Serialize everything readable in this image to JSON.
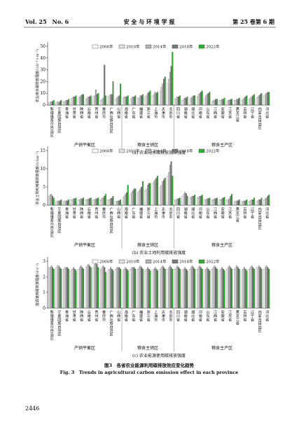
{
  "header": {
    "left": "Vol. 25　No. 6",
    "center": "安 全 与 环 境 学 报",
    "right": "第 25 卷第 6 期"
  },
  "figure": {
    "caption_cn": "图3　各省农业能源利用碳排放效应变化趋势",
    "caption_en": "Fig. 3　Trends in agricultural carbon emission effect in each province"
  },
  "page_number": "2446",
  "chart_data": [
    {
      "type": "bar",
      "title": "(a) 农业用水碳排放效应强度",
      "y_label": "农业用水碳排放强度/(10⁻⁴ t·m⁻³)",
      "categories": [
        "新疆维吾尔自治区",
        "宁夏回族自治区",
        "青海省",
        "甘肃省",
        "陕西省",
        "云南省",
        "贵州省",
        "重庆市",
        "广西壮族自治区",
        "山西省",
        "海南省",
        "广东省",
        "福建省",
        "浙江省",
        "上海市",
        "天津市",
        "北京市",
        "四川省",
        "湖南省",
        "湖北省",
        "河南省",
        "山东省",
        "江西省",
        "安徽省",
        "江苏省",
        "黑龙江省",
        "吉林省",
        "辽宁省",
        "内蒙古自治区",
        "河北省"
      ],
      "groups": [
        "产销平衡区",
        "粮食主销区",
        "粮食主产区"
      ],
      "series": [
        {
          "name": "2006年",
          "color": "#ffffff",
          "values": [
            2,
            2,
            3,
            5,
            6,
            5,
            7,
            4,
            7,
            5,
            6,
            5,
            6,
            7,
            8,
            12,
            18,
            5,
            4,
            5,
            7,
            6,
            3,
            4,
            3,
            4,
            4,
            5,
            6,
            8
          ]
        },
        {
          "name": "2010年",
          "color": "#e0e0e0",
          "values": [
            2,
            3,
            3,
            6,
            7,
            6,
            8,
            5,
            8,
            6,
            7,
            6,
            6,
            8,
            9,
            15,
            22,
            6,
            5,
            6,
            9,
            8,
            4,
            4,
            4,
            4,
            5,
            6,
            7,
            9
          ]
        },
        {
          "name": "2014年",
          "color": "#b5b5b5",
          "values": [
            3,
            2,
            4,
            7,
            8,
            7,
            13,
            6,
            9,
            7,
            7,
            7,
            8,
            10,
            11,
            18,
            28,
            7,
            6,
            7,
            10,
            9,
            4,
            5,
            4,
            5,
            6,
            7,
            8,
            10
          ]
        },
        {
          "name": "2018年",
          "color": "#7a7a7a",
          "values": [
            3,
            3,
            4,
            7,
            9,
            7,
            9,
            34,
            9,
            8,
            7,
            7,
            8,
            11,
            10,
            22,
            33,
            7,
            6,
            8,
            11,
            10,
            5,
            5,
            5,
            5,
            7,
            8,
            9,
            11
          ]
        },
        {
          "name": "2022年",
          "color": "#2db52d",
          "values": [
            4,
            4,
            5,
            8,
            9,
            8,
            10,
            8,
            20,
            18,
            8,
            8,
            9,
            12,
            11,
            24,
            45,
            8,
            7,
            8,
            12,
            11,
            5,
            6,
            5,
            6,
            8,
            9,
            10,
            11
          ]
        }
      ],
      "ylim": [
        0,
        50
      ],
      "yticks": [
        0,
        10,
        20,
        30,
        40,
        50
      ],
      "legend": "top"
    },
    {
      "type": "bar",
      "title": "(b) 农业土地利用碳排放强度",
      "y_label": "农业土地利用碳排放强度/(t·hm⁻²)",
      "categories": [
        "新疆维吾尔自治区",
        "宁夏回族自治区",
        "青海省",
        "甘肃省",
        "陕西省",
        "云南省",
        "贵州省",
        "重庆市",
        "广西壮族自治区",
        "山西省",
        "海南省",
        "广东省",
        "福建省",
        "浙江省",
        "上海市",
        "天津市",
        "北京市",
        "四川省",
        "湖南省",
        "湖北省",
        "河南省",
        "山东省",
        "江西省",
        "安徽省",
        "江苏省",
        "黑龙江省",
        "吉林省",
        "辽宁省",
        "内蒙古自治区",
        "河北省"
      ],
      "groups": [
        "产销平衡区",
        "粮食主销区",
        "粮食主产区"
      ],
      "series": [
        {
          "name": "2006年",
          "color": "#ffffff",
          "values": [
            2.5,
            1,
            1,
            1.5,
            1.5,
            1.5,
            1.5,
            1.5,
            1.5,
            1,
            2,
            3,
            3.5,
            4,
            6,
            5,
            8,
            1.5,
            2.5,
            2,
            2,
            1.5,
            1.5,
            1.5,
            1.5,
            1,
            1,
            1,
            1,
            1.5
          ]
        },
        {
          "name": "2010年",
          "color": "#e0e0e0",
          "values": [
            2.8,
            1,
            1,
            1.5,
            1.5,
            1.5,
            1.5,
            2,
            1.5,
            1,
            2.5,
            3.5,
            4,
            4.5,
            6.5,
            5.5,
            9,
            1.5,
            3,
            2.2,
            2.2,
            1.5,
            1.5,
            1.5,
            1.5,
            1,
            1,
            1.2,
            1.2,
            1.8
          ]
        },
        {
          "name": "2014年",
          "color": "#b5b5b5",
          "values": [
            3,
            1.2,
            1.2,
            1.8,
            1.8,
            1.8,
            1.8,
            2,
            1.8,
            1.2,
            3,
            4,
            4.5,
            5.5,
            7,
            6.5,
            11,
            1.8,
            3.5,
            2.5,
            2.5,
            1.8,
            1.8,
            1.8,
            1.8,
            1.2,
            1.2,
            1.5,
            1.5,
            2
          ]
        },
        {
          "name": "2018年",
          "color": "#7a7a7a",
          "values": [
            2.5,
            1.2,
            1.2,
            1.8,
            1.8,
            1.8,
            1.8,
            2.5,
            2,
            1.2,
            3.5,
            4.5,
            5,
            6,
            7.5,
            7,
            12,
            1.8,
            3.2,
            2.5,
            2.5,
            1.8,
            1.8,
            2,
            2.5,
            1.2,
            1.2,
            1.5,
            1.5,
            2.5
          ]
        },
        {
          "name": "2022年",
          "color": "#2db52d",
          "values": [
            2,
            1.5,
            1.5,
            2,
            2,
            2,
            2,
            3,
            2.5,
            1.5,
            5.5,
            4.5,
            6.5,
            6,
            8,
            7.5,
            8,
            2,
            2.5,
            2.8,
            2.8,
            2,
            2,
            2.2,
            3,
            1.5,
            1.5,
            2,
            2,
            2.8
          ]
        }
      ],
      "ylim": [
        0,
        15
      ],
      "yticks": [
        0,
        5,
        10,
        15
      ],
      "legend": "top"
    },
    {
      "type": "bar",
      "title": "(c) 农业能源使用碳排放强度",
      "y_label": "能源使用碳排放强度/(t·t⁻¹)",
      "categories": [
        "新疆维吾尔自治区",
        "宁夏回族自治区",
        "青海省",
        "甘肃省",
        "陕西省",
        "云南省",
        "贵州省",
        "重庆市",
        "广西壮族自治区",
        "山西省",
        "海南省",
        "广东省",
        "福建省",
        "浙江省",
        "上海市",
        "天津市",
        "北京市",
        "四川省",
        "湖南省",
        "湖北省",
        "河南省",
        "山东省",
        "江西省",
        "安徽省",
        "江苏省",
        "黑龙江省",
        "吉林省",
        "辽宁省",
        "内蒙古自治区",
        "河北省"
      ],
      "groups": [
        "产销平衡区",
        "粮食主销区",
        "粮食主产区"
      ],
      "series": [
        {
          "name": "2006年",
          "color": "#ffffff",
          "values": [
            2.6,
            2.6,
            2.5,
            2.4,
            2.5,
            2.6,
            2.6,
            2.5,
            2.4,
            2.5,
            2.4,
            2.5,
            2.5,
            2.4,
            2.4,
            2.5,
            2.5,
            2.5,
            2.4,
            2.5,
            2.5,
            2.4,
            2.5,
            2.4,
            2.5,
            2.5,
            2.4,
            2.5,
            2.6,
            2.5
          ]
        },
        {
          "name": "2010年",
          "color": "#e0e0e0",
          "values": [
            2.6,
            2.7,
            2.6,
            2.5,
            2.6,
            2.7,
            2.8,
            2.6,
            2.5,
            2.6,
            2.5,
            2.6,
            2.6,
            2.5,
            2.5,
            2.6,
            2.6,
            2.6,
            2.5,
            2.6,
            2.6,
            2.5,
            2.6,
            2.5,
            2.6,
            2.6,
            2.5,
            2.6,
            2.6,
            2.6
          ]
        },
        {
          "name": "2014年",
          "color": "#b5b5b5",
          "values": [
            2.7,
            2.7,
            2.6,
            2.6,
            2.7,
            2.8,
            2.9,
            2.7,
            2.6,
            2.6,
            2.6,
            2.6,
            2.7,
            2.6,
            2.6,
            2.7,
            2.7,
            2.7,
            2.6,
            2.7,
            2.7,
            2.6,
            2.7,
            2.6,
            2.7,
            2.7,
            2.6,
            2.7,
            2.7,
            2.7
          ]
        },
        {
          "name": "2018年",
          "color": "#7a7a7a",
          "values": [
            2.6,
            2.6,
            2.6,
            2.5,
            2.6,
            2.7,
            2.8,
            2.6,
            2.5,
            2.6,
            2.5,
            2.6,
            2.6,
            2.5,
            2.5,
            2.6,
            2.6,
            2.6,
            2.5,
            2.6,
            2.6,
            2.5,
            2.6,
            2.5,
            2.6,
            2.6,
            2.5,
            2.6,
            2.6,
            2.6
          ]
        },
        {
          "name": "2022年",
          "color": "#2db52d",
          "values": [
            2.5,
            2.5,
            2.5,
            2.4,
            2.5,
            2.6,
            2.6,
            2.3,
            2.4,
            2.5,
            2.4,
            2.5,
            2.5,
            2.4,
            2.4,
            2.5,
            2.5,
            2.5,
            2.4,
            2.5,
            2.5,
            2.4,
            2.5,
            2.4,
            2.5,
            2.5,
            2.4,
            2.5,
            2.5,
            2.5
          ]
        }
      ],
      "ylim": [
        0,
        3
      ],
      "yticks": [
        0,
        1,
        2,
        3
      ],
      "legend": "top"
    }
  ]
}
